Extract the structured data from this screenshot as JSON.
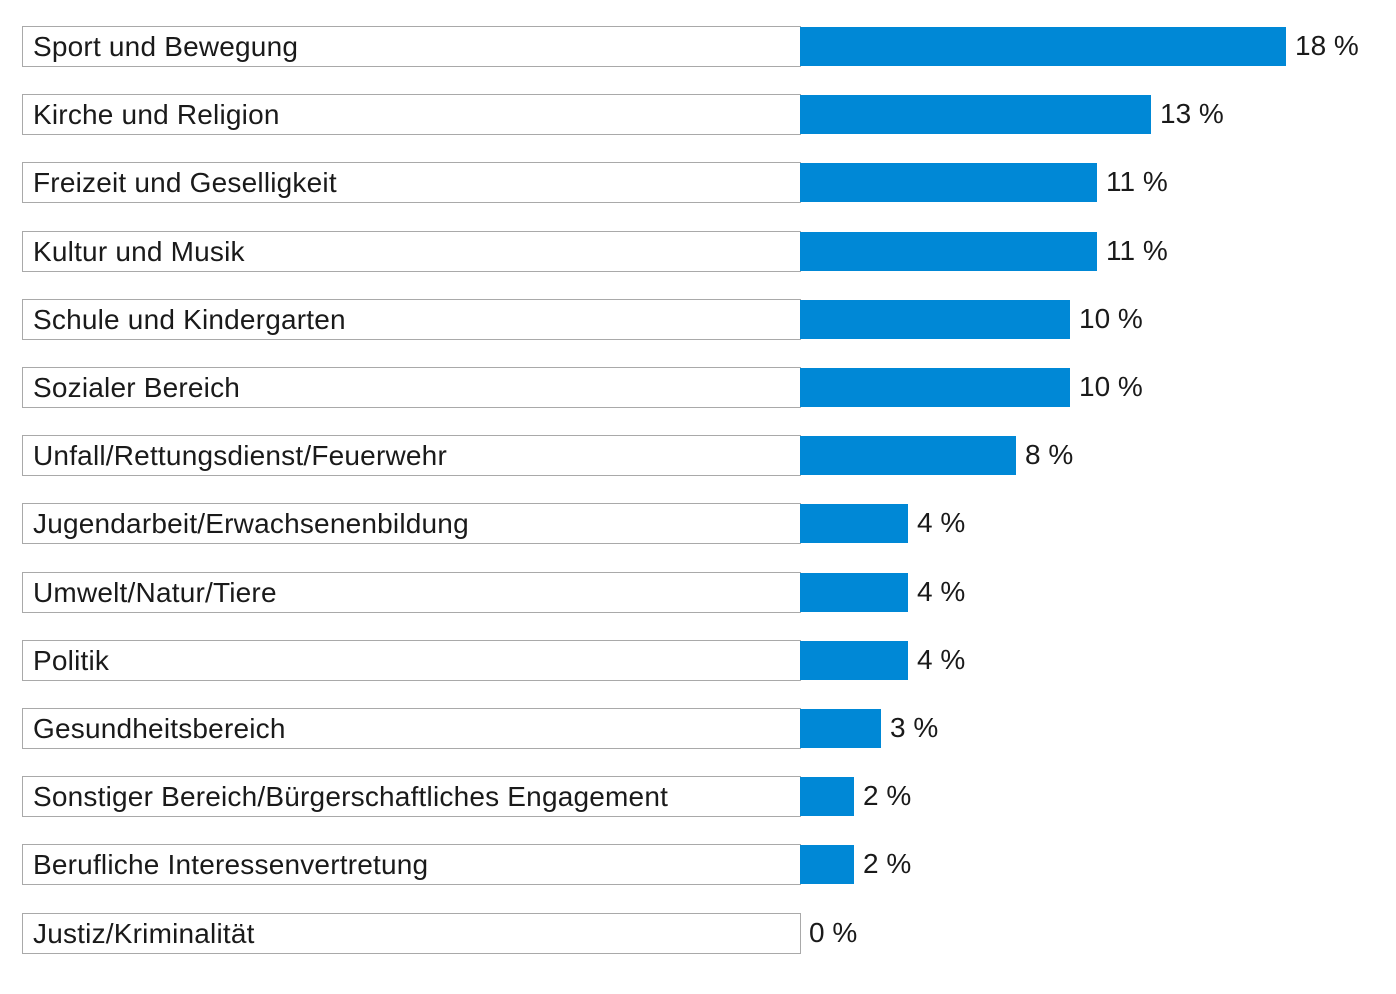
{
  "chart_data": {
    "type": "bar",
    "orientation": "horizontal",
    "title": "",
    "xlabel": "",
    "ylabel": "",
    "xlim": [
      0,
      18
    ],
    "grid": false,
    "legend": "none",
    "bar_color": "#0088d6",
    "categories": [
      "Sport und Bewegung",
      "Kirche und Religion",
      "Freizeit und Geselligkeit",
      "Kultur und Musik",
      "Schule und Kindergarten",
      "Sozialer Bereich",
      "Unfall/Rettungsdienst/Feuerwehr",
      "Jugendarbeit/Erwachsenenbildung",
      "Umwelt/Natur/Tiere",
      "Politik",
      "Gesundheitsbereich",
      "Sonstiger Bereich/Bürgerschaftliches Engagement",
      "Berufliche Interessenvertretung",
      "Justiz/Kriminalität"
    ],
    "values": [
      18,
      13,
      11,
      11,
      10,
      10,
      8,
      4,
      4,
      4,
      3,
      2,
      2,
      0
    ],
    "value_labels": [
      "18 %",
      "13 %",
      "11 %",
      "11 %",
      "10 %",
      "10 %",
      "8 %",
      "4 %",
      "4 %",
      "4 %",
      "3 %",
      "2 %",
      "2 %",
      "0 %"
    ]
  }
}
